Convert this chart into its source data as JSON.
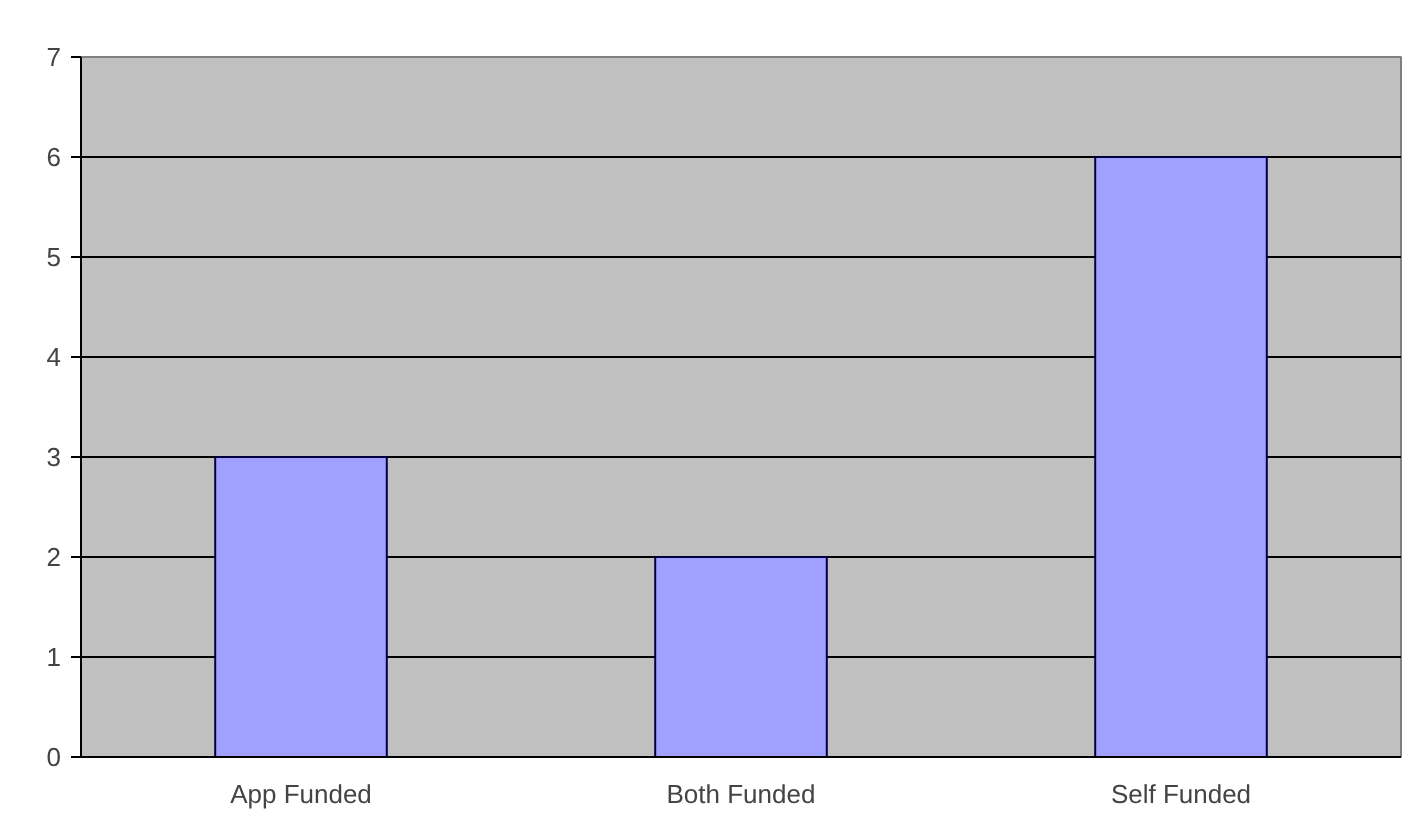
{
  "chart_data": {
    "type": "bar",
    "categories": [
      "App Funded",
      "Both Funded",
      "Self Funded"
    ],
    "values": [
      3,
      2,
      6
    ],
    "color": "#a0a0ff",
    "ylim": [
      0,
      7
    ],
    "yticks": [
      0,
      1,
      2,
      3,
      4,
      5,
      6,
      7
    ],
    "grid": "y"
  }
}
